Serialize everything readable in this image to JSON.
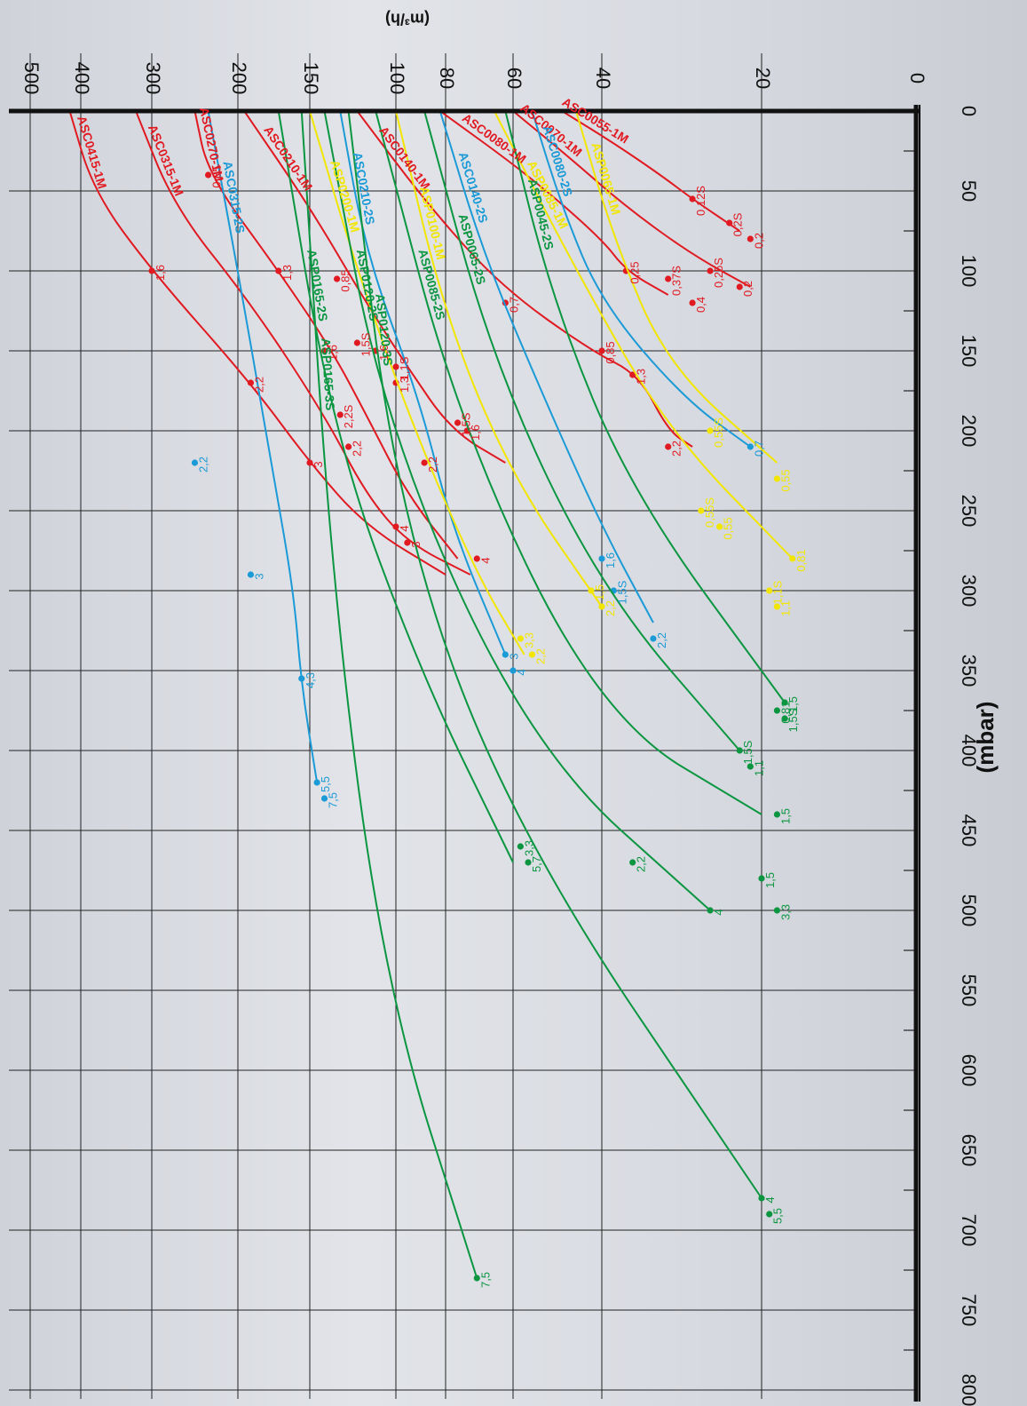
{
  "chart_data": {
    "type": "line",
    "orientation": "rotated-90-clockwise",
    "xlabel": "(mbar)",
    "ylabel": "(m³/h)",
    "x_ticks": [
      "0",
      "50",
      "100",
      "150",
      "200",
      "250",
      "300",
      "350",
      "400",
      "450",
      "500",
      "550",
      "600",
      "650",
      "700",
      "750",
      "800"
    ],
    "y_ticks": [
      "0",
      "20",
      "40",
      "60",
      "80",
      "100",
      "150",
      "200",
      "300",
      "400",
      "500"
    ],
    "xlim": [
      0,
      800
    ],
    "ylim": [
      0,
      500
    ],
    "y_scale": "log-like",
    "grid": true,
    "colors": {
      "ASC-1M": "#e11a22",
      "ASC-2S": "#1a9ad6",
      "ASP-1M": "#f2e600",
      "ASP-2S": "#0a9640"
    },
    "series": [
      {
        "name": "ASC0055-1M",
        "color": "#e11a22",
        "points": [
          [
            0,
            48
          ],
          [
            20,
            38
          ],
          [
            40,
            31
          ],
          [
            55,
            27
          ],
          [
            75,
            22
          ]
        ],
        "markers": [
          [
            55,
            27,
            "0,12S"
          ],
          [
            70,
            23,
            "0,2S"
          ],
          [
            80,
            21,
            "0,2"
          ]
        ]
      },
      {
        "name": "ASC0070-1M",
        "color": "#e11a22",
        "points": [
          [
            0,
            60
          ],
          [
            30,
            46
          ],
          [
            60,
            36
          ],
          [
            90,
            27
          ],
          [
            110,
            21
          ]
        ],
        "markers": [
          [
            100,
            25,
            "0,25S"
          ],
          [
            110,
            22,
            "0,2"
          ]
        ]
      },
      {
        "name": "ASC0080-1M",
        "color": "#e11a22",
        "points": [
          [
            0,
            82
          ],
          [
            40,
            56
          ],
          [
            80,
            40
          ],
          [
            100,
            36
          ],
          [
            115,
            30
          ]
        ],
        "markers": [
          [
            100,
            36,
            "0,25"
          ],
          [
            105,
            30,
            "0,37S"
          ],
          [
            120,
            27,
            "0,4"
          ]
        ]
      },
      {
        "name": "ASC0140-1M",
        "color": "#e11a22",
        "points": [
          [
            0,
            120
          ],
          [
            60,
            86
          ],
          [
            110,
            63
          ],
          [
            150,
            42
          ],
          [
            165,
            34
          ],
          [
            200,
            30
          ],
          [
            210,
            27
          ]
        ],
        "markers": [
          [
            120,
            62,
            "0,7"
          ],
          [
            150,
            40,
            "0,85"
          ],
          [
            165,
            35,
            "1,3"
          ],
          [
            210,
            30,
            "2,2"
          ]
        ]
      },
      {
        "name": "ASC0210-1M",
        "color": "#e11a22",
        "points": [
          [
            0,
            195
          ],
          [
            60,
            150
          ],
          [
            120,
            115
          ],
          [
            160,
            95
          ],
          [
            200,
            78
          ],
          [
            220,
            62
          ]
        ],
        "markers": [
          [
            105,
            132,
            "0,85"
          ],
          [
            145,
            120,
            "1,5S"
          ],
          [
            150,
            110,
            "1,6"
          ],
          [
            170,
            100,
            "1,3"
          ],
          [
            195,
            76,
            "1,5S"
          ],
          [
            200,
            73,
            "1,6"
          ]
        ]
      },
      {
        "name": "ASC0270-1M",
        "color": "#e11a22",
        "points": [
          [
            0,
            245
          ],
          [
            40,
            230
          ],
          [
            100,
            170
          ],
          [
            150,
            135
          ],
          [
            190,
            115
          ],
          [
            240,
            95
          ],
          [
            280,
            76
          ]
        ],
        "markers": [
          [
            40,
            230,
            "0,85"
          ],
          [
            100,
            170,
            "1,3"
          ],
          [
            160,
            100,
            "1,1S"
          ],
          [
            220,
            88,
            "2,2"
          ],
          [
            280,
            70,
            "4"
          ]
        ]
      },
      {
        "name": "ASC0315-1M",
        "color": "#e11a22",
        "points": [
          [
            0,
            320
          ],
          [
            60,
            270
          ],
          [
            120,
            190
          ],
          [
            190,
            140
          ],
          [
            240,
            115
          ],
          [
            270,
            95
          ],
          [
            290,
            72
          ]
        ],
        "markers": [
          [
            150,
            140,
            "1,6"
          ],
          [
            190,
            130,
            "2,2S"
          ],
          [
            210,
            125,
            "2,2"
          ],
          [
            260,
            100,
            "4"
          ],
          [
            270,
            95,
            "3"
          ]
        ]
      },
      {
        "name": "ASC0415-1M",
        "color": "#e11a22",
        "points": [
          [
            0,
            420
          ],
          [
            50,
            380
          ],
          [
            100,
            300
          ],
          [
            170,
            190
          ],
          [
            220,
            150
          ],
          [
            260,
            115
          ],
          [
            290,
            80
          ]
        ],
        "markers": [
          [
            100,
            300,
            "1,6"
          ],
          [
            170,
            190,
            "2,2"
          ],
          [
            220,
            150,
            "3"
          ]
        ]
      },
      {
        "name": "ASC0080-2S",
        "color": "#1a9ad6",
        "points": [
          [
            0,
            55
          ],
          [
            60,
            48
          ],
          [
            120,
            40
          ],
          [
            180,
            28
          ],
          [
            210,
            21
          ]
        ],
        "markers": [
          [
            210,
            21,
            "0,7"
          ]
        ]
      },
      {
        "name": "ASC0140-2S",
        "color": "#1a9ad6",
        "points": [
          [
            0,
            82
          ],
          [
            90,
            68
          ],
          [
            180,
            52
          ],
          [
            260,
            40
          ],
          [
            320,
            32
          ]
        ],
        "markers": [
          [
            280,
            40,
            "1,6"
          ],
          [
            300,
            38,
            "1,5S"
          ],
          [
            330,
            32,
            "2,2"
          ]
        ]
      },
      {
        "name": "ASC0210-2S",
        "color": "#1a9ad6",
        "points": [
          [
            0,
            130
          ],
          [
            90,
            115
          ],
          [
            180,
            90
          ],
          [
            260,
            78
          ],
          [
            340,
            62
          ]
        ],
        "markers": [
          [
            340,
            62,
            "3"
          ],
          [
            350,
            60,
            "4"
          ]
        ]
      },
      {
        "name": "ASC0315-2S",
        "color": "#1a9ad6",
        "points": [
          [
            0,
            230
          ],
          [
            100,
            200
          ],
          [
            220,
            175
          ],
          [
            300,
            160
          ],
          [
            360,
            155
          ],
          [
            420,
            145
          ]
        ],
        "markers": [
          [
            220,
            245,
            "2,2"
          ],
          [
            290,
            190,
            "3"
          ],
          [
            355,
            155,
            "4,3"
          ],
          [
            420,
            145,
            "5,5"
          ],
          [
            430,
            140,
            "7,5"
          ]
        ]
      },
      {
        "name": "ASP0065-1M",
        "color": "#f2e600",
        "points": [
          [
            0,
            45
          ],
          [
            80,
            38
          ],
          [
            160,
            30
          ],
          [
            220,
            18
          ]
        ],
        "markers": [
          [
            200,
            25,
            "0,55S"
          ],
          [
            230,
            18,
            "0,55"
          ]
        ]
      },
      {
        "name": "ASP0085-1M",
        "color": "#f2e600",
        "points": [
          [
            0,
            65
          ],
          [
            100,
            45
          ],
          [
            200,
            30
          ],
          [
            280,
            16
          ]
        ],
        "markers": [
          [
            250,
            26,
            "0,55S"
          ],
          [
            260,
            24,
            "0,55"
          ],
          [
            280,
            16,
            "0,81"
          ]
        ]
      },
      {
        "name": "ASP0100-1M",
        "color": "#f2e600",
        "points": [
          [
            0,
            100
          ],
          [
            130,
            80
          ],
          [
            230,
            60
          ],
          [
            310,
            40
          ]
        ],
        "markers": [
          [
            300,
            42,
            "1,5"
          ],
          [
            310,
            40,
            "2,2"
          ],
          [
            300,
            19,
            "1,1S"
          ],
          [
            310,
            18,
            "1,1"
          ]
        ]
      },
      {
        "name": "ASP0200-1M",
        "color": "#f2e600",
        "points": [
          [
            0,
            150
          ],
          [
            100,
            120
          ],
          [
            200,
            92
          ],
          [
            290,
            70
          ],
          [
            340,
            57
          ]
        ],
        "markers": [
          [
            330,
            58,
            "3,3"
          ],
          [
            340,
            55,
            "2,2"
          ]
        ]
      },
      {
        "name": "ASP0045-2S",
        "color": "#0a9640",
        "points": [
          [
            0,
            62
          ],
          [
            120,
            50
          ],
          [
            240,
            35
          ],
          [
            370,
            17
          ]
        ],
        "markers": [
          [
            370,
            17,
            "1,5"
          ],
          [
            375,
            18,
            "0,81"
          ],
          [
            380,
            17,
            "1,5S"
          ]
        ]
      },
      {
        "name": "ASP0065-2S",
        "color": "#0a9640",
        "points": [
          [
            0,
            88
          ],
          [
            160,
            65
          ],
          [
            300,
            40
          ],
          [
            400,
            22
          ]
        ],
        "markers": [
          [
            400,
            22,
            "1,5S"
          ],
          [
            410,
            21,
            "1,1"
          ]
        ]
      },
      {
        "name": "ASP0085-2S",
        "color": "#0a9640",
        "points": [
          [
            0,
            110
          ],
          [
            200,
            75
          ],
          [
            380,
            40
          ],
          [
            440,
            20
          ]
        ],
        "markers": [
          [
            440,
            18,
            "1,5"
          ],
          [
            480,
            20,
            "1,5"
          ],
          [
            500,
            18,
            "3,3"
          ]
        ]
      },
      {
        "name": "ASP0120-2S",
        "color": "#0a9640",
        "points": [
          [
            0,
            140
          ],
          [
            200,
            105
          ],
          [
            400,
            55
          ],
          [
            500,
            25
          ]
        ],
        "markers": [
          [
            470,
            35,
            "2,2"
          ],
          [
            500,
            25,
            "4"
          ]
        ]
      },
      {
        "name": "ASP0165-2S",
        "color": "#0a9640",
        "points": [
          [
            0,
            170
          ],
          [
            200,
            135
          ],
          [
            350,
            90
          ],
          [
            470,
            60
          ]
        ],
        "markers": [
          [
            460,
            58,
            "3,3"
          ],
          [
            470,
            56,
            "5,7"
          ]
        ]
      },
      {
        "name": "ASP0120-3S",
        "color": "#0a9640",
        "points": [
          [
            0,
            125
          ],
          [
            250,
            100
          ],
          [
            450,
            60
          ],
          [
            680,
            20
          ]
        ],
        "markers": [
          [
            680,
            20,
            "4"
          ],
          [
            690,
            19,
            "5,5"
          ]
        ]
      },
      {
        "name": "ASP0165-3S",
        "color": "#0a9640",
        "points": [
          [
            0,
            155
          ],
          [
            300,
            135
          ],
          [
            550,
            105
          ],
          [
            730,
            70
          ]
        ],
        "markers": [
          [
            730,
            70,
            "7,5"
          ]
        ]
      }
    ]
  }
}
